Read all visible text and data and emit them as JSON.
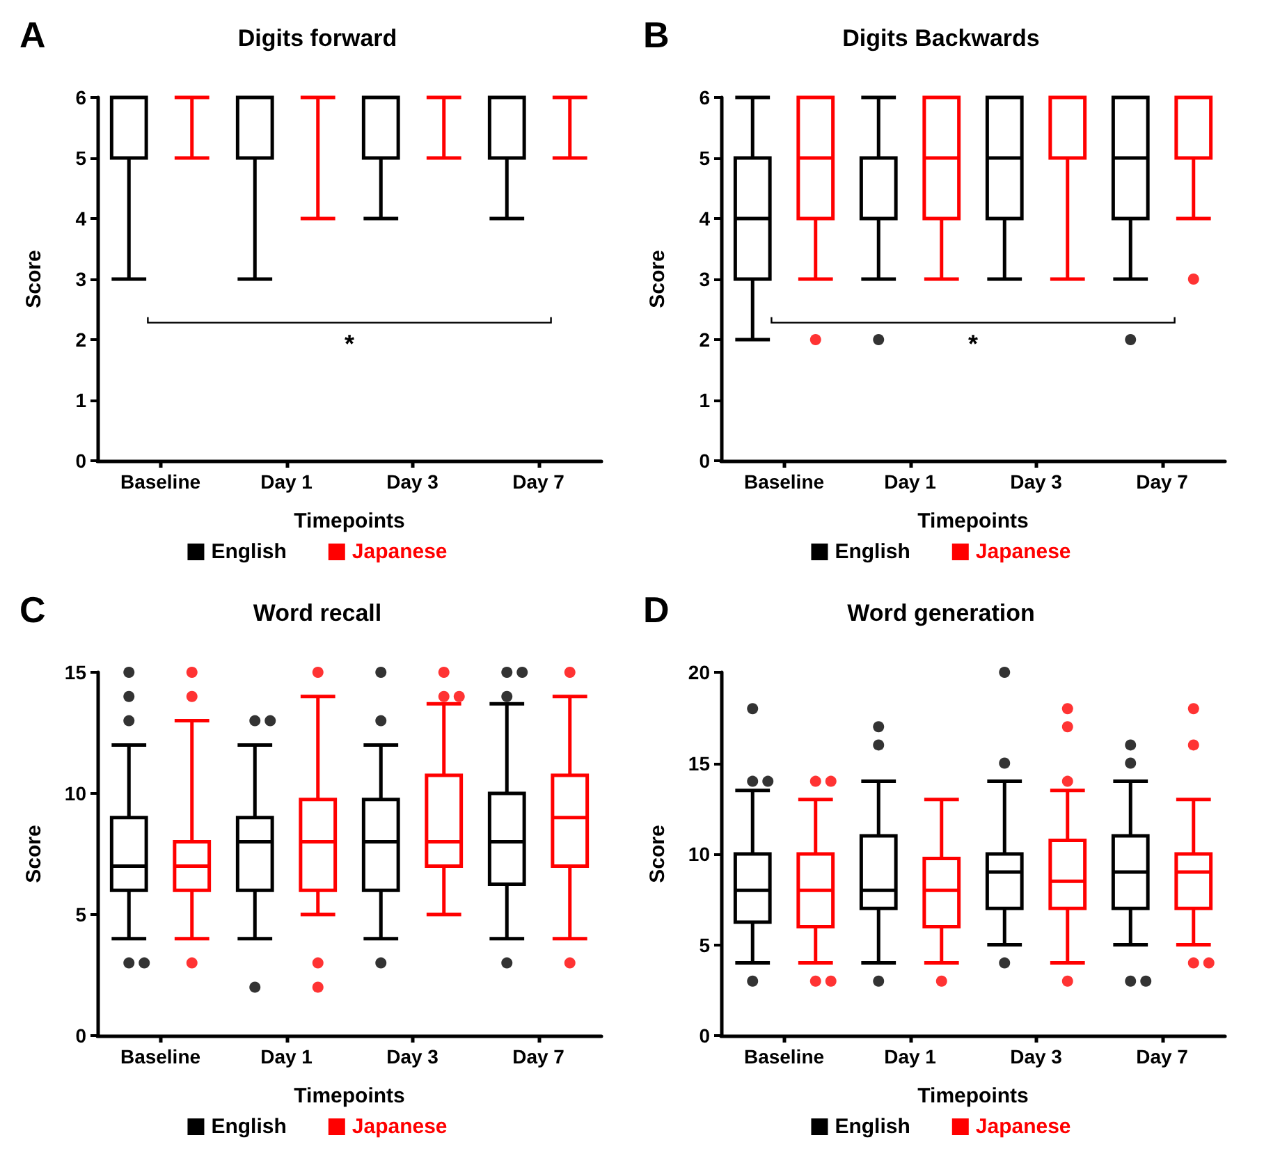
{
  "chart_data": [
    {
      "type": "box",
      "title": "Digits forward",
      "xlabel": "Timepoints",
      "ylabel": "Score",
      "categories": [
        "Baseline",
        "Day 1",
        "Day 3",
        "Day 7"
      ],
      "ylim": [
        0,
        6
      ],
      "yticks": [
        0,
        1,
        2,
        3,
        4,
        5,
        6
      ],
      "grid": false,
      "legend": "bottom",
      "annotations": [
        "A",
        "*"
      ],
      "series": [
        {
          "name": "English",
          "color": "#000000",
          "boxes": [
            {
              "low": 3,
              "q1": 5,
              "median": 5,
              "q3": 6,
              "high": 6
            },
            {
              "low": 3,
              "q1": 5,
              "median": 5,
              "q3": 6,
              "high": 6
            },
            {
              "low": 4,
              "q1": 5,
              "median": 5,
              "q3": 6,
              "high": 6
            },
            {
              "low": 4,
              "q1": 5,
              "median": 5,
              "q3": 6,
              "high": 6
            }
          ]
        },
        {
          "name": "Japanese",
          "color": "#ff0000",
          "boxes": [
            {
              "low": 5,
              "q1": 6,
              "median": 6,
              "q3": 6,
              "high": 6
            },
            {
              "low": 4,
              "q1": 6,
              "median": 6,
              "q3": 6,
              "high": 6
            },
            {
              "low": 5,
              "q1": 6,
              "median": 6,
              "q3": 6,
              "high": 6
            },
            {
              "low": 5,
              "q1": 6,
              "median": 6,
              "q3": 6,
              "high": 6
            }
          ]
        }
      ]
    },
    {
      "type": "box",
      "title": "Digits Backwards",
      "xlabel": "Timepoints",
      "ylabel": "Score",
      "categories": [
        "Baseline",
        "Day 1",
        "Day 3",
        "Day 7"
      ],
      "ylim": [
        0,
        6
      ],
      "yticks": [
        0,
        1,
        2,
        3,
        4,
        5,
        6
      ],
      "grid": false,
      "legend": "bottom",
      "annotations": [
        "B",
        "*"
      ],
      "series": [
        {
          "name": "English",
          "color": "#000000",
          "boxes": [
            {
              "low": 2,
              "q1": 3,
              "median": 4,
              "q3": 5,
              "high": 6
            },
            {
              "low": 3,
              "q1": 4,
              "median": 5,
              "q3": 5,
              "high": 6,
              "outliers": [
                2
              ]
            },
            {
              "low": 3,
              "q1": 4,
              "median": 5,
              "q3": 6,
              "high": 6
            },
            {
              "low": 3,
              "q1": 4,
              "median": 5,
              "q3": 6,
              "high": 6,
              "outliers": [
                2
              ]
            }
          ]
        },
        {
          "name": "Japanese",
          "color": "#ff0000",
          "boxes": [
            {
              "low": 3,
              "q1": 4,
              "median": 5,
              "q3": 6,
              "high": 6,
              "outliers": [
                2
              ]
            },
            {
              "low": 3,
              "q1": 4,
              "median": 5,
              "q3": 6,
              "high": 6
            },
            {
              "low": 3,
              "q1": 5,
              "median": 6,
              "q3": 6,
              "high": 6
            },
            {
              "low": 4,
              "q1": 5,
              "median": 6,
              "q3": 6,
              "high": 6,
              "outliers": [
                3
              ]
            }
          ]
        }
      ]
    },
    {
      "type": "box",
      "title": "Word recall",
      "xlabel": "Timepoints",
      "ylabel": "Score",
      "categories": [
        "Baseline",
        "Day 1",
        "Day 3",
        "Day 7"
      ],
      "ylim": [
        0,
        15
      ],
      "yticks": [
        0,
        5,
        10,
        15
      ],
      "grid": false,
      "legend": "bottom",
      "annotations": [
        "C"
      ],
      "series": [
        {
          "name": "English",
          "color": "#000000",
          "boxes": [
            {
              "low": 4,
              "q1": 6,
              "median": 7,
              "q3": 9,
              "high": 12,
              "outliers": [
                13,
                14,
                15,
                3,
                3
              ]
            },
            {
              "low": 4,
              "q1": 6,
              "median": 8,
              "q3": 9,
              "high": 12,
              "outliers": [
                13,
                13,
                2
              ]
            },
            {
              "low": 4,
              "q1": 6,
              "median": 8,
              "q3": 9.75,
              "high": 12,
              "outliers": [
                13,
                15,
                3
              ]
            },
            {
              "low": 4,
              "q1": 6.25,
              "median": 8,
              "q3": 10,
              "high": 13.7,
              "outliers": [
                14,
                15,
                15,
                3
              ]
            }
          ]
        },
        {
          "name": "Japanese",
          "color": "#ff0000",
          "boxes": [
            {
              "low": 4,
              "q1": 6,
              "median": 7,
              "q3": 8,
              "high": 13,
              "outliers": [
                14,
                15,
                3
              ]
            },
            {
              "low": 5,
              "q1": 6,
              "median": 8,
              "q3": 9.75,
              "high": 14,
              "outliers": [
                15,
                3,
                2
              ]
            },
            {
              "low": 5,
              "q1": 7,
              "median": 8,
              "q3": 10.75,
              "high": 13.7,
              "outliers": [
                14,
                14,
                15
              ]
            },
            {
              "low": 4,
              "q1": 7,
              "median": 9,
              "q3": 10.75,
              "high": 14,
              "outliers": [
                15,
                3
              ]
            }
          ]
        }
      ]
    },
    {
      "type": "box",
      "title": "Word generation",
      "xlabel": "Timepoints",
      "ylabel": "Score",
      "categories": [
        "Baseline",
        "Day 1",
        "Day 3",
        "Day 7"
      ],
      "ylim": [
        0,
        20
      ],
      "yticks": [
        0,
        5,
        10,
        15,
        20
      ],
      "grid": false,
      "legend": "bottom",
      "annotations": [
        "D"
      ],
      "series": [
        {
          "name": "English",
          "color": "#000000",
          "boxes": [
            {
              "low": 4,
              "q1": 6.25,
              "median": 8,
              "q3": 10,
              "high": 13.5,
              "outliers": [
                14,
                14,
                18,
                3
              ]
            },
            {
              "low": 4,
              "q1": 7,
              "median": 8,
              "q3": 11,
              "high": 14,
              "outliers": [
                16,
                17,
                3
              ]
            },
            {
              "low": 5,
              "q1": 7,
              "median": 9,
              "q3": 10,
              "high": 14,
              "outliers": [
                15,
                20,
                4
              ]
            },
            {
              "low": 5,
              "q1": 7,
              "median": 9,
              "q3": 11,
              "high": 14,
              "outliers": [
                15,
                16,
                3,
                3
              ]
            }
          ]
        },
        {
          "name": "Japanese",
          "color": "#ff0000",
          "boxes": [
            {
              "low": 4,
              "q1": 6,
              "median": 8,
              "q3": 10,
              "high": 13,
              "outliers": [
                14,
                14,
                3,
                3
              ]
            },
            {
              "low": 4,
              "q1": 6,
              "median": 8,
              "q3": 9.75,
              "high": 13,
              "outliers": [
                3
              ]
            },
            {
              "low": 4,
              "q1": 7,
              "median": 8.5,
              "q3": 10.75,
              "high": 13.5,
              "outliers": [
                14,
                17,
                18,
                3
              ]
            },
            {
              "low": 5,
              "q1": 7,
              "median": 9,
              "q3": 10,
              "high": 13,
              "outliers": [
                16,
                18,
                4,
                4
              ]
            }
          ]
        }
      ]
    }
  ]
}
